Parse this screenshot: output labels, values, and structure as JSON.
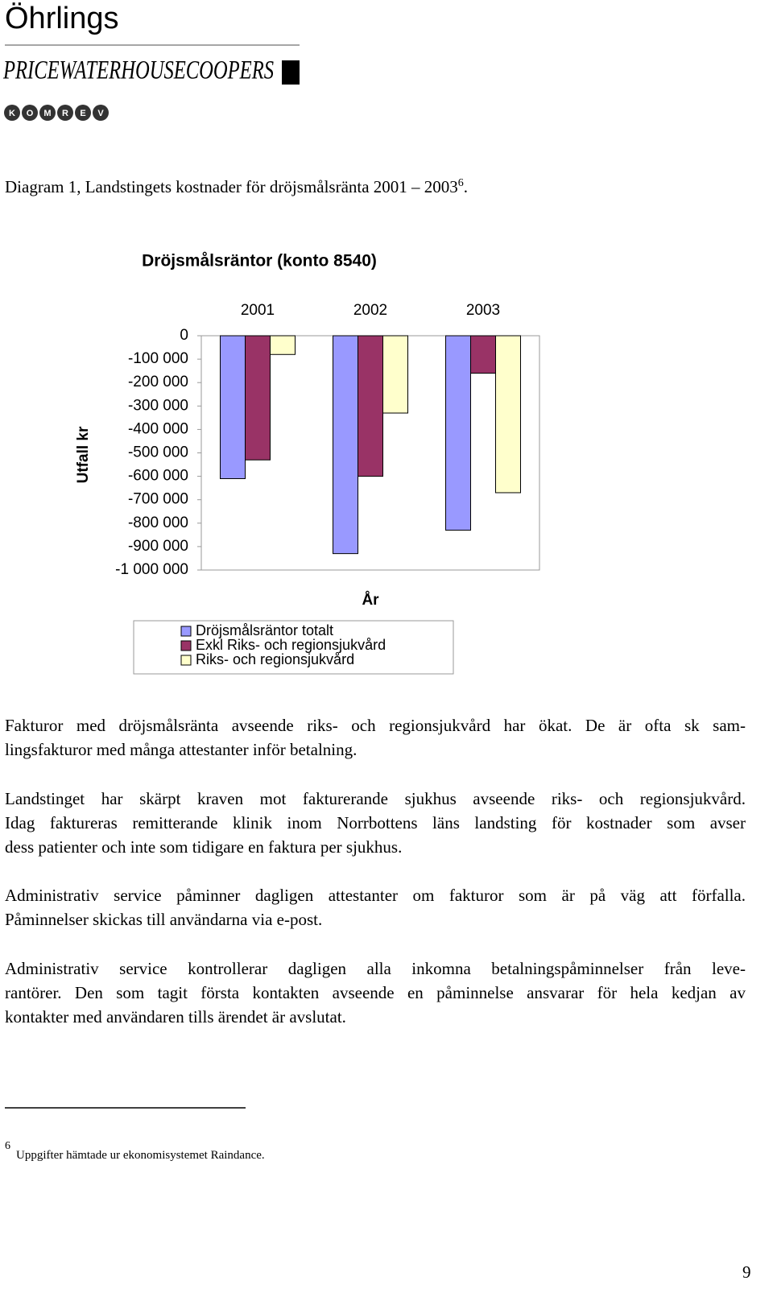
{
  "header": {
    "firm": "Öhrlings",
    "brand": "PRICEWATERHOUSECOOPERS",
    "komrev": [
      "K",
      "O",
      "M",
      "R",
      "E",
      "V"
    ]
  },
  "caption": {
    "text": "Diagram 1, Landstingets kostnader för dröjsmålsränta 2001 – 2003",
    "ref": "6",
    "end": "."
  },
  "chart_data": {
    "type": "bar",
    "title": "Dröjsmålsräntor (konto 8540)",
    "y_label": "Utfall kr",
    "x_label": "År",
    "categories": [
      "2001",
      "2002",
      "2003"
    ],
    "series": [
      {
        "name": "Dröjsmålsräntor totalt",
        "color": "#9999ff",
        "values": [
          -610000,
          -930000,
          -830000
        ]
      },
      {
        "name": "Exkl Riks- och regionsjukvård",
        "color": "#993366",
        "values": [
          -530000,
          -600000,
          -160000
        ]
      },
      {
        "name": "Riks- och regionsjukvård",
        "color": "#ffffcc",
        "values": [
          -80000,
          -330000,
          -670000
        ]
      }
    ],
    "ylim": [
      -1000000,
      0
    ],
    "yticks": [
      0,
      {
        "value": -100000,
        "label": "-100 000"
      },
      {
        "value": -200000,
        "label": "-200 000"
      },
      {
        "value": -300000,
        "label": "-300 000"
      },
      {
        "value": -400000,
        "label": "-400 000"
      },
      {
        "value": -500000,
        "label": "-500 000"
      },
      {
        "value": -600000,
        "label": "-600 000"
      },
      {
        "value": -700000,
        "label": "-700 000"
      },
      {
        "value": -800000,
        "label": "-800 000"
      },
      {
        "value": -900000,
        "label": "-900 000"
      },
      {
        "value": -1000000,
        "label": "-1 000 000"
      }
    ],
    "legend": "bottom"
  },
  "paragraphs": [
    [
      "Fakturor med dröjsmålsränta avseende riks- och regionsjukvård har ökat. De är ofta sk sam-",
      "lingsfakturor med många attestanter inför betalning."
    ],
    [
      "Landstinget har skärpt kraven mot fakturerande sjukhus avseende riks- och regionsjukvård.",
      "Idag faktureras remitterande klinik inom Norrbottens läns landsting för kostnader som avser",
      "dess patienter och inte som tidigare en faktura per sjukhus."
    ],
    [
      "Administrativ service påminner dagligen attestanter om fakturor som är på väg att förfalla.",
      "Påminnelser skickas till användarna via e-post."
    ],
    [
      "Administrativ service kontrollerar dagligen alla inkomna betalningspåminnelser från leve-",
      "rantörer. Den som tagit första kontakten avseende en påminnelse ansvarar för hela kedjan av",
      "kontakter med användaren tills ärendet är avslutat."
    ]
  ],
  "footnote": {
    "number": "6",
    "text": "Uppgifter hämtade ur ekonomisystemet Raindance."
  },
  "page_number": "9"
}
